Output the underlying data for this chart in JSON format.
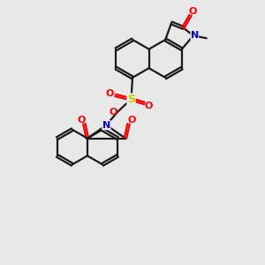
{
  "background_color": "#e8e8e8",
  "bond_color": "#1a1a1a",
  "oxygen_color": "#ff0000",
  "nitrogen_color": "#0000cc",
  "sulfur_color": "#cccc00",
  "line_width": 1.6,
  "dbo": 0.05,
  "fig_size": [
    3.0,
    3.0
  ],
  "dpi": 100,
  "xlim": [
    0,
    10
  ],
  "ylim": [
    0,
    10
  ]
}
